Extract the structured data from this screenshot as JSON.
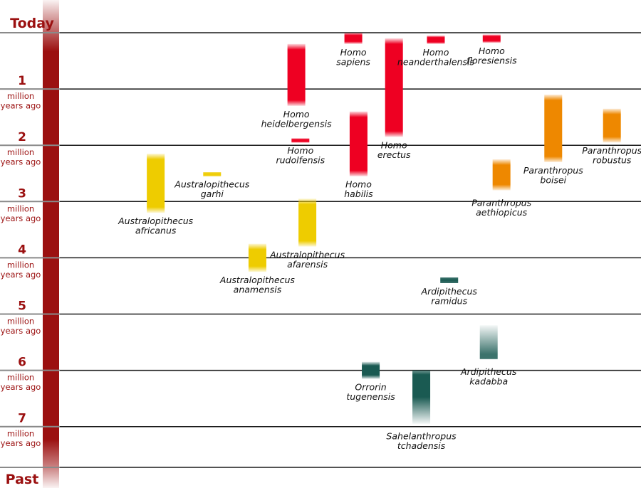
{
  "chart_data": {
    "type": "range-bar",
    "title": "",
    "ylabel": "million years ago",
    "axis_direction": "top = today, bottom = past",
    "ylim": [
      0,
      7.72
    ],
    "top_label": "Today",
    "bottom_label": "Past",
    "unit_label": [
      "million",
      "years ago"
    ],
    "ticks": [
      1,
      2,
      3,
      4,
      5,
      6,
      7
    ],
    "colors": {
      "timeline_bar": "#9b1010",
      "axis_text": "#9b1010",
      "homo": "#ee0022",
      "paranthropus": "#ee8800",
      "australopithecus": "#eecc00",
      "early_hominins": "#1a5a52"
    },
    "series": [
      {
        "genus": "Homo",
        "name": [
          "Homo",
          "sapiens"
        ],
        "start": 0.0,
        "end": 0.2,
        "color_key": "homo",
        "column": 0.505,
        "label_pos": "below"
      },
      {
        "genus": "Homo",
        "name": [
          "Homo",
          "neanderthalensis"
        ],
        "start": 0.05,
        "end": 0.2,
        "color_key": "homo",
        "column": 0.647,
        "label_pos": "below"
      },
      {
        "genus": "Homo",
        "name": [
          "Homo",
          "floresiensis"
        ],
        "start": 0.03,
        "end": 0.18,
        "color_key": "homo",
        "column": 0.743,
        "label_pos": "below"
      },
      {
        "genus": "Homo",
        "name": [
          "Homo",
          "heidelbergensis"
        ],
        "start": 0.2,
        "end": 1.3,
        "color_key": "homo",
        "column": 0.407,
        "label_pos": "below"
      },
      {
        "genus": "Homo",
        "name": [
          "Homo",
          "rudolfensis"
        ],
        "start": 1.88,
        "end": 1.95,
        "color_key": "homo",
        "column": 0.414,
        "label_pos": "below"
      },
      {
        "genus": "Homo",
        "name": [
          "Homo",
          "erectus"
        ],
        "start": 0.1,
        "end": 1.85,
        "color_key": "homo",
        "column": 0.575,
        "label_pos": "below"
      },
      {
        "genus": "Homo",
        "name": [
          "Homo",
          "habilis"
        ],
        "start": 1.4,
        "end": 2.55,
        "color_key": "homo",
        "column": 0.514,
        "label_pos": "below"
      },
      {
        "genus": "Paranthropus",
        "name": [
          "Paranthropus",
          "boisei"
        ],
        "start": 1.1,
        "end": 2.3,
        "color_key": "paranthropus",
        "column": 0.849,
        "label_pos": "below"
      },
      {
        "genus": "Paranthropus",
        "name": [
          "Paranthropus",
          "robustus"
        ],
        "start": 1.35,
        "end": 1.95,
        "color_key": "paranthropus",
        "column": 0.95,
        "label_pos": "below"
      },
      {
        "genus": "Paranthropus",
        "name": [
          "Paranthropus",
          "aethiopicus"
        ],
        "start": 2.25,
        "end": 2.8,
        "color_key": "paranthropus",
        "column": 0.76,
        "label_pos": "below-far"
      },
      {
        "genus": "Australopithecus",
        "name": [
          "Australopithecus",
          "africanus"
        ],
        "start": 2.15,
        "end": 3.2,
        "color_key": "australopithecus",
        "column": 0.165,
        "label_pos": "below"
      },
      {
        "genus": "Australopithecus",
        "name": [
          "Australopithecus",
          "garhi"
        ],
        "start": 2.48,
        "end": 2.55,
        "color_key": "australopithecus",
        "column": 0.262,
        "label_pos": "below"
      },
      {
        "genus": "Australopithecus",
        "name": [
          "Australopithecus",
          "afarensis"
        ],
        "start": 2.95,
        "end": 3.8,
        "color_key": "australopithecus",
        "column": 0.426,
        "label_pos": "below"
      },
      {
        "genus": "Australopithecus",
        "name": [
          "Australopithecus",
          "anamensis"
        ],
        "start": 3.75,
        "end": 4.25,
        "color_key": "australopithecus",
        "column": 0.34,
        "label_pos": "below"
      },
      {
        "genus": "Ardipithecus",
        "name": [
          "Ardipithecus",
          "ramidus"
        ],
        "start": 4.35,
        "end": 4.45,
        "color_key": "early_hominins",
        "column": 0.67,
        "label_pos": "below"
      },
      {
        "genus": "Ardipithecus",
        "name": [
          "Ardipithecus",
          "kadabba"
        ],
        "start": 5.2,
        "end": 5.8,
        "color_key": "early_hominins",
        "column": 0.738,
        "label_pos": "below-far"
      },
      {
        "genus": "Orrorin",
        "name": [
          "Orrorin",
          "tugenensis"
        ],
        "start": 5.85,
        "end": 6.15,
        "color_key": "early_hominins",
        "column": 0.535,
        "label_pos": "below"
      },
      {
        "genus": "Sahelanthropus",
        "name": [
          "Sahelanthropus",
          "tchadensis"
        ],
        "start": 6.0,
        "end": 6.95,
        "color_key": "early_hominins",
        "column": 0.622,
        "label_pos": "below-far"
      }
    ]
  }
}
